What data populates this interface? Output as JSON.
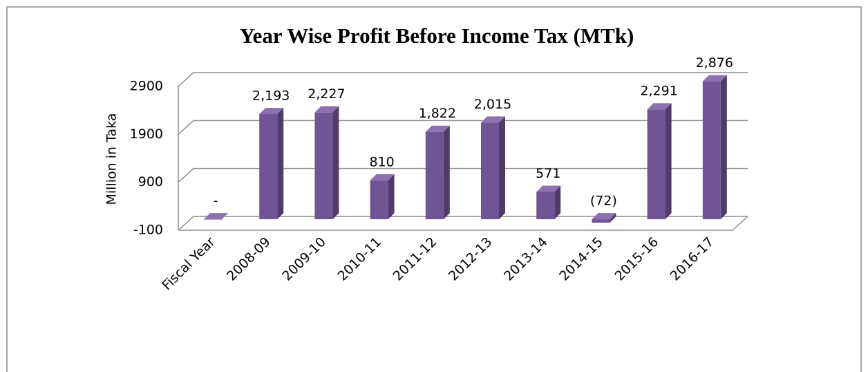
{
  "chart_data": {
    "type": "bar3d",
    "title": "Year Wise Profit Before Income Tax (MTk)",
    "y_label": "Million in Taka",
    "categories": [
      "Fiscal Year",
      "2008-09",
      "2009-10",
      "2010-11",
      "2011-12",
      "2012-13",
      "2013-14",
      "2014-15",
      "2015-16",
      "2016-17"
    ],
    "values": [
      0,
      2193,
      2227,
      810,
      1822,
      2015,
      571,
      -72,
      2291,
      2876
    ],
    "value_labels": [
      "-",
      "2,193",
      "2,227",
      "810",
      "1,822",
      "2,015",
      "571",
      "(72)",
      "2,291",
      "2,876"
    ],
    "color": "#6f5593",
    "ylim": [
      -100,
      2900
    ],
    "yticks": [
      -100,
      900,
      1900,
      2900
    ],
    "grid": true
  }
}
